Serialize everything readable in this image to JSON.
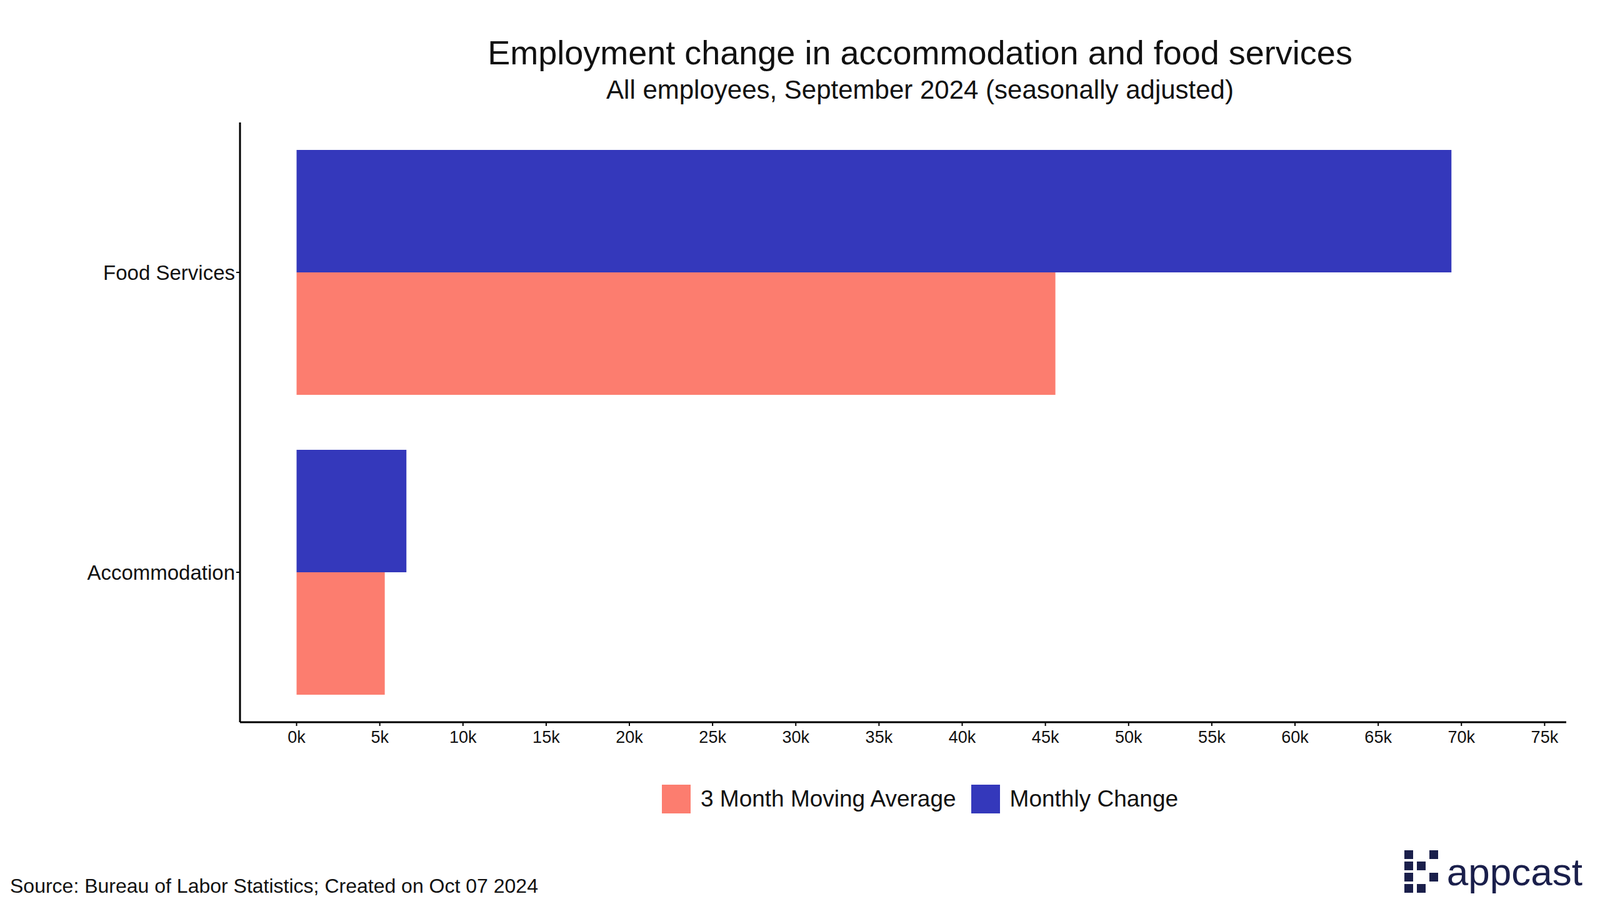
{
  "chart_data": {
    "type": "bar",
    "orientation": "horizontal",
    "title": "Employment change in accommodation and food services",
    "subtitle": "All employees, September 2024  (seasonally adjusted)",
    "categories": [
      "Food Services",
      "Accommodation"
    ],
    "series": [
      {
        "name": "3 Month Moving Average",
        "color": "#fc7d6f",
        "values": [
          45600,
          5300
        ]
      },
      {
        "name": "Monthly Change",
        "color": "#3438bb",
        "values": [
          69400,
          6600
        ]
      }
    ],
    "xlim": [
      -3400,
      76300
    ],
    "xticks": [
      {
        "value": 0,
        "label": "0k"
      },
      {
        "value": 5000,
        "label": "5k"
      },
      {
        "value": 10000,
        "label": "10k"
      },
      {
        "value": 15000,
        "label": "15k"
      },
      {
        "value": 20000,
        "label": "20k"
      },
      {
        "value": 25000,
        "label": "25k"
      },
      {
        "value": 30000,
        "label": "30k"
      },
      {
        "value": 35000,
        "label": "35k"
      },
      {
        "value": 40000,
        "label": "40k"
      },
      {
        "value": 45000,
        "label": "45k"
      },
      {
        "value": 50000,
        "label": "50k"
      },
      {
        "value": 55000,
        "label": "55k"
      },
      {
        "value": 60000,
        "label": "60k"
      },
      {
        "value": 65000,
        "label": "65k"
      },
      {
        "value": 70000,
        "label": "70k"
      },
      {
        "value": 75000,
        "label": "75k"
      }
    ],
    "grid": false,
    "legend": "bottom",
    "source": "Source: Bureau of Labor Statistics; Created on Oct 07 2024",
    "logo": "appcast"
  }
}
